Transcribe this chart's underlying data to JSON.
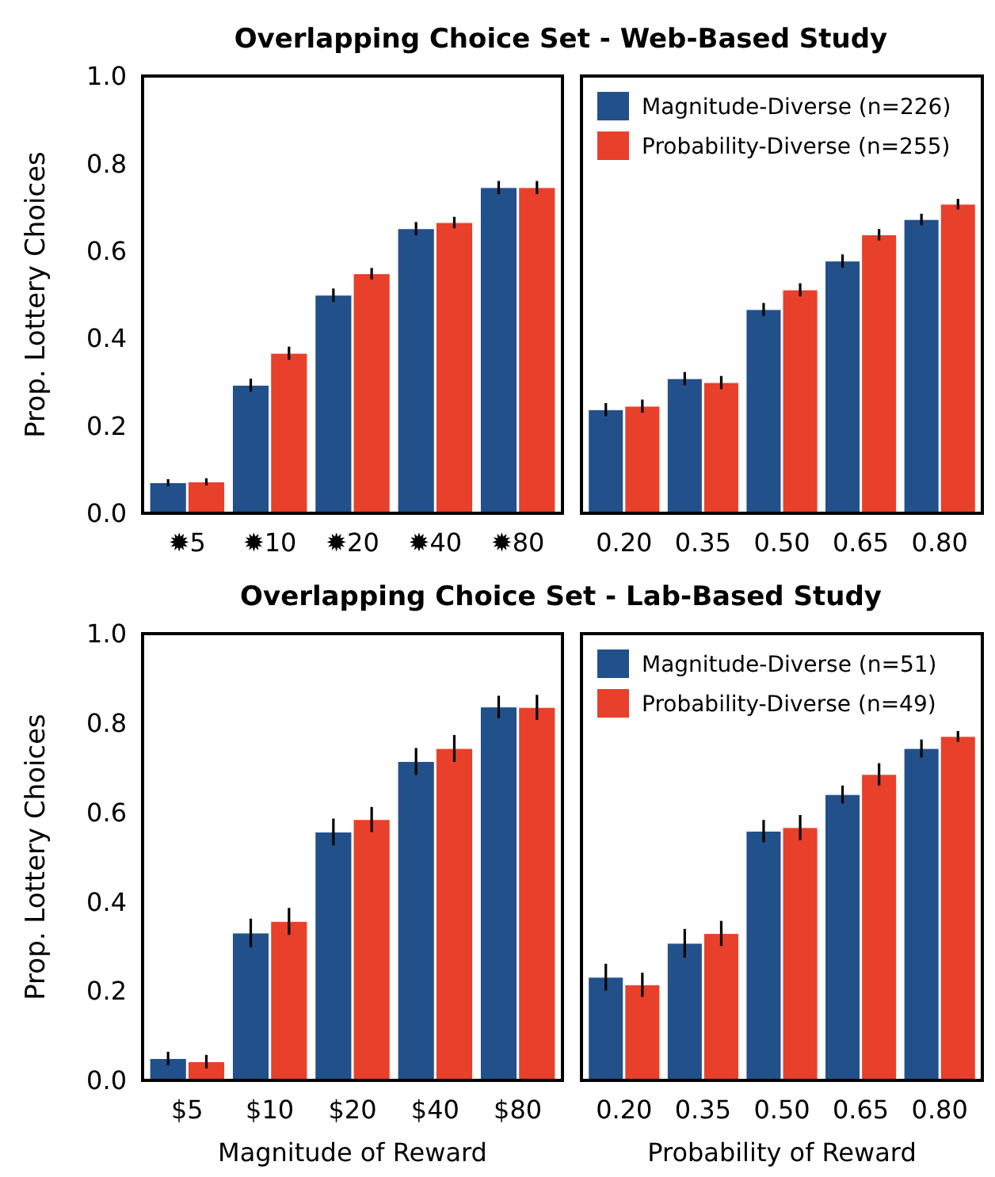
{
  "chart_data": [
    {
      "type": "bar",
      "title": "Overlapping Choice Set - Web-Based Study",
      "ylabel": "Prop. Lottery Choices",
      "categories": [
        "✹5",
        "✹10",
        "✹20",
        "✹40",
        "✹80"
      ],
      "ylim": [
        0,
        1
      ],
      "yticks": [
        {
          "value": 0,
          "label": "0.0"
        },
        {
          "value": 0.2,
          "label": "0.2"
        },
        {
          "value": 0.4,
          "label": "0.4"
        },
        {
          "value": 0.6,
          "label": "0.6"
        },
        {
          "value": 0.8,
          "label": "0.8"
        },
        {
          "value": 1,
          "label": "1.0"
        }
      ],
      "grid": false,
      "legend": false,
      "series": [
        {
          "color": "#22508a",
          "values": [
            0.07,
            0.293,
            0.499,
            0.651,
            0.745
          ],
          "errors": [
            0.008,
            0.015,
            0.015,
            0.015,
            0.015
          ]
        },
        {
          "color": "#e8402a",
          "values": [
            0.072,
            0.366,
            0.548,
            0.665,
            0.745
          ],
          "errors": [
            0.008,
            0.015,
            0.013,
            0.013,
            0.015
          ]
        }
      ]
    },
    {
      "type": "bar",
      "categories": [
        "0.20",
        "0.35",
        "0.50",
        "0.65",
        "0.80"
      ],
      "ylim": [
        0,
        1
      ],
      "tick_labels": "x",
      "grid": false,
      "legend": "top left",
      "series": [
        {
          "name": "Magnitude-Diverse (n=226)",
          "color": "#22508a",
          "values": [
            0.237,
            0.308,
            0.466,
            0.577,
            0.672
          ],
          "errors": [
            0.015,
            0.015,
            0.015,
            0.015,
            0.013
          ]
        },
        {
          "name": "Probability-Diverse (n=255)",
          "color": "#e8402a",
          "values": [
            0.245,
            0.299,
            0.511,
            0.637,
            0.707
          ],
          "errors": [
            0.015,
            0.015,
            0.015,
            0.013,
            0.012
          ]
        }
      ]
    },
    {
      "type": "bar",
      "title": "Overlapping Choice Set - Lab-Based Study",
      "ylabel": "Prop. Lottery Choices",
      "xlabel": "Magnitude of Reward",
      "categories": [
        "$5",
        "$10",
        "$20",
        "$40",
        "$80"
      ],
      "ylim": [
        0,
        1
      ],
      "yticks": [
        {
          "value": 0,
          "label": "0.0"
        },
        {
          "value": 0.2,
          "label": "0.2"
        },
        {
          "value": 0.4,
          "label": "0.4"
        },
        {
          "value": 0.6,
          "label": "0.6"
        },
        {
          "value": 0.8,
          "label": "0.8"
        },
        {
          "value": 1,
          "label": "1.0"
        }
      ],
      "grid": false,
      "legend": false,
      "series": [
        {
          "color": "#22508a",
          "values": [
            0.049,
            0.33,
            0.556,
            0.714,
            0.836
          ],
          "errors": [
            0.015,
            0.032,
            0.03,
            0.03,
            0.025
          ]
        },
        {
          "color": "#e8402a",
          "values": [
            0.042,
            0.356,
            0.584,
            0.743,
            0.835
          ],
          "errors": [
            0.015,
            0.03,
            0.028,
            0.03,
            0.028
          ]
        }
      ]
    },
    {
      "type": "bar",
      "xlabel": "Probability of Reward",
      "categories": [
        "0.20",
        "0.35",
        "0.50",
        "0.65",
        "0.80"
      ],
      "ylim": [
        0,
        1
      ],
      "tick_labels": "x",
      "grid": false,
      "legend": "top left",
      "series": [
        {
          "name": "Magnitude-Diverse (n=51)",
          "color": "#22508a",
          "values": [
            0.231,
            0.307,
            0.558,
            0.64,
            0.743
          ],
          "errors": [
            0.03,
            0.032,
            0.025,
            0.02,
            0.02
          ]
        },
        {
          "name": "Probability-Diverse (n=49)",
          "color": "#e8402a",
          "values": [
            0.214,
            0.329,
            0.566,
            0.685,
            0.77
          ],
          "errors": [
            0.027,
            0.028,
            0.028,
            0.025,
            0.012
          ]
        }
      ]
    }
  ]
}
